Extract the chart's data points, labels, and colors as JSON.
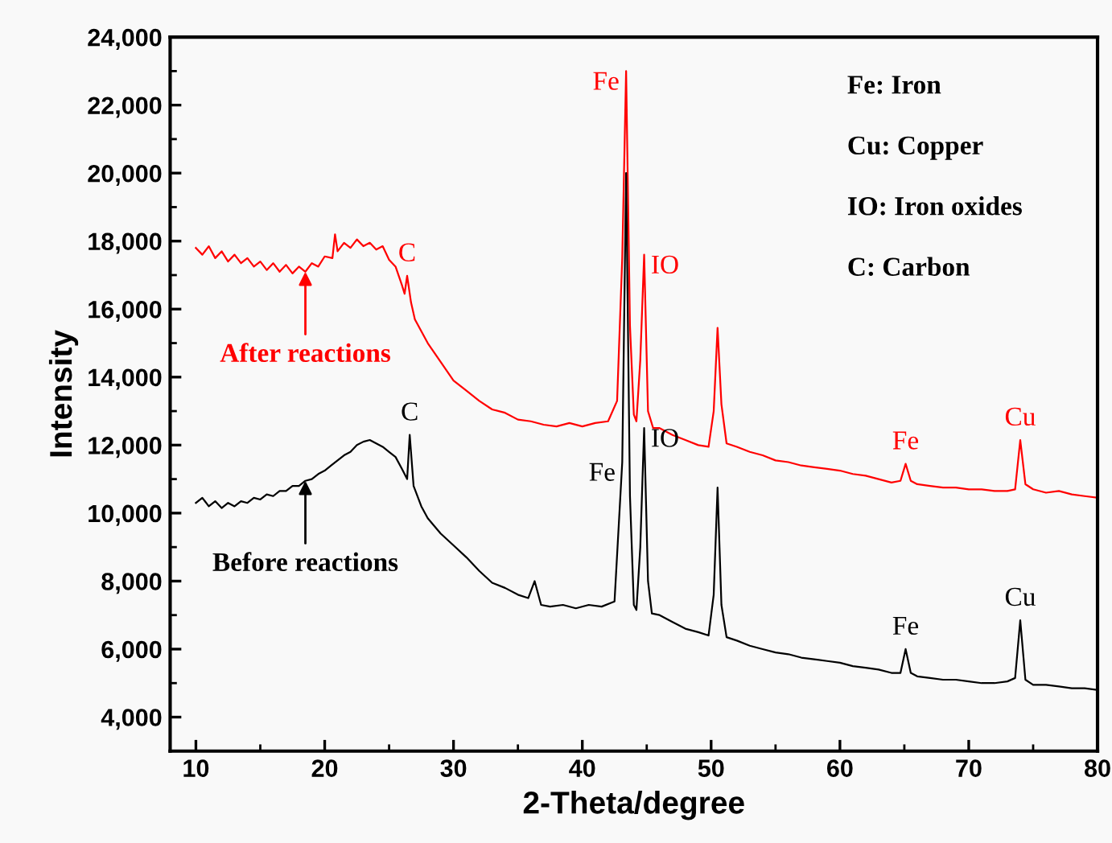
{
  "chart_data": {
    "type": "line",
    "xlabel": "2-Theta/degree",
    "ylabel": "Intensity",
    "xlim": [
      8,
      80
    ],
    "ylim": [
      3000,
      24000
    ],
    "xticks": [
      10,
      20,
      30,
      40,
      50,
      60,
      70,
      80
    ],
    "yticks": [
      {
        "value": 4000,
        "label": "4,000"
      },
      {
        "value": 6000,
        "label": "6,000"
      },
      {
        "value": 8000,
        "label": "8,000"
      },
      {
        "value": 10000,
        "label": "10,000"
      },
      {
        "value": 12000,
        "label": "12,000"
      },
      {
        "value": 14000,
        "label": "14,000"
      },
      {
        "value": 16000,
        "label": "16,000"
      },
      {
        "value": 18000,
        "label": "18,000"
      },
      {
        "value": 20000,
        "label": "20,000"
      },
      {
        "value": 22000,
        "label": "22,000"
      },
      {
        "value": 24000,
        "label": "24,000"
      }
    ],
    "grid": false,
    "marker": "none",
    "line_style": "solid",
    "series": [
      {
        "color": "#ff0000",
        "x": [
          10,
          10.5,
          11,
          11.5,
          12,
          12.5,
          13,
          13.5,
          14,
          14.5,
          15,
          15.5,
          16,
          16.5,
          17,
          17.5,
          18,
          18.5,
          19,
          19.5,
          20,
          20.6,
          20.8,
          21,
          21.5,
          22,
          22.5,
          23,
          23.5,
          24,
          24.5,
          25,
          25.5,
          26,
          26.2,
          26.4,
          26.7,
          27,
          28,
          29,
          30,
          31,
          32,
          33,
          34,
          35,
          36,
          37,
          38,
          39,
          40,
          41,
          42,
          42.7,
          43.1,
          43.4,
          43.7,
          44.0,
          44.2,
          44.5,
          44.8,
          45.1,
          45.5,
          46,
          47,
          48,
          49,
          49.8,
          50.2,
          50.5,
          50.8,
          51.2,
          52,
          53,
          54,
          55,
          56,
          57,
          58,
          59,
          60,
          61,
          62,
          63,
          64,
          64.7,
          65.1,
          65.5,
          66,
          67,
          68,
          69,
          70,
          71,
          72,
          73,
          73.6,
          74.0,
          74.4,
          75,
          76,
          77,
          78,
          79,
          80
        ],
        "values": [
          17800,
          17600,
          17850,
          17500,
          17700,
          17400,
          17600,
          17350,
          17500,
          17250,
          17400,
          17150,
          17350,
          17100,
          17300,
          17050,
          17250,
          17100,
          17350,
          17250,
          17550,
          17500,
          18200,
          17700,
          17950,
          17800,
          18050,
          17850,
          17950,
          17750,
          17850,
          17450,
          17250,
          16700,
          16450,
          16980,
          16200,
          15700,
          15000,
          14450,
          13900,
          13600,
          13300,
          13050,
          12950,
          12750,
          12700,
          12600,
          12550,
          12650,
          12550,
          12650,
          12700,
          13300,
          17500,
          23000,
          15500,
          12900,
          12700,
          14500,
          17600,
          13000,
          12500,
          12500,
          12300,
          12150,
          12000,
          11950,
          13000,
          15450,
          13200,
          12050,
          11950,
          11800,
          11700,
          11550,
          11500,
          11400,
          11350,
          11300,
          11250,
          11150,
          11100,
          11000,
          10900,
          10950,
          11450,
          10950,
          10850,
          10800,
          10750,
          10750,
          10700,
          10700,
          10650,
          10650,
          10700,
          12150,
          10850,
          10700,
          10600,
          10650,
          10550,
          10500,
          10450
        ]
      },
      {
        "color": "#000000",
        "x": [
          10,
          10.5,
          11,
          11.5,
          12,
          12.5,
          13,
          13.5,
          14,
          14.5,
          15,
          15.5,
          16,
          16.5,
          17,
          17.5,
          18,
          18.5,
          19,
          19.5,
          20,
          20.5,
          21,
          21.5,
          22,
          22.5,
          23,
          23.5,
          24,
          24.5,
          25,
          25.5,
          26,
          26.4,
          26.6,
          26.9,
          27.5,
          28,
          29,
          30,
          31,
          32,
          33,
          34,
          35,
          35.8,
          36.3,
          36.8,
          37.5,
          38.5,
          39.5,
          40.5,
          41.5,
          42.5,
          43.1,
          43.4,
          43.7,
          44.0,
          44.2,
          44.5,
          44.8,
          45.1,
          45.4,
          46,
          47,
          48,
          49,
          49.8,
          50.2,
          50.5,
          50.8,
          51.2,
          52,
          53,
          54,
          55,
          56,
          57,
          58,
          59,
          60,
          61,
          62,
          63,
          64,
          64.7,
          65.1,
          65.5,
          66,
          67,
          68,
          69,
          70,
          71,
          72,
          73,
          73.6,
          74.0,
          74.4,
          75,
          76,
          77,
          78,
          79,
          80
        ],
        "values": [
          10300,
          10450,
          10200,
          10350,
          10150,
          10300,
          10200,
          10350,
          10300,
          10450,
          10400,
          10550,
          10500,
          10650,
          10650,
          10800,
          10800,
          10950,
          11000,
          11150,
          11250,
          11400,
          11550,
          11700,
          11800,
          12000,
          12100,
          12150,
          12050,
          11950,
          11800,
          11650,
          11300,
          11000,
          12300,
          10800,
          10200,
          9850,
          9400,
          9050,
          8700,
          8300,
          7950,
          7800,
          7600,
          7500,
          8000,
          7300,
          7250,
          7300,
          7200,
          7300,
          7250,
          7400,
          11500,
          20000,
          10500,
          7300,
          7150,
          9000,
          12500,
          8000,
          7050,
          7000,
          6800,
          6600,
          6500,
          6400,
          7600,
          10750,
          7300,
          6350,
          6250,
          6100,
          6000,
          5900,
          5850,
          5750,
          5700,
          5650,
          5600,
          5500,
          5450,
          5400,
          5300,
          5300,
          6000,
          5300,
          5200,
          5150,
          5100,
          5100,
          5050,
          5000,
          5000,
          5050,
          5150,
          6850,
          5100,
          4950,
          4950,
          4900,
          4850,
          4850,
          4800
        ]
      }
    ],
    "annotations": [
      {
        "text": "After reactions",
        "x": 18.5,
        "y": 17100
      },
      {
        "text": "Before reactions",
        "x": 18.5,
        "y": 10950
      },
      {
        "text": "Fe",
        "x": 43.4,
        "y": 23000
      },
      {
        "text": "C",
        "x": 26.4,
        "y": 16980
      },
      {
        "text": "IO",
        "x": 44.8,
        "y": 17600
      },
      {
        "text": "Fe",
        "x": 65.1,
        "y": 11450
      },
      {
        "text": "Cu",
        "x": 74.0,
        "y": 12150
      },
      {
        "text": "C",
        "x": 26.6,
        "y": 12300
      },
      {
        "text": "Fe",
        "x": 43.1,
        "y": 11500
      },
      {
        "text": "IO",
        "x": 44.8,
        "y": 12500
      },
      {
        "text": "Fe",
        "x": 65.1,
        "y": 6000
      },
      {
        "text": "Cu",
        "x": 74.0,
        "y": 6850
      },
      "Fe: Iron",
      "Cu: Copper",
      "IO: Iron oxides",
      "C: Carbon"
    ]
  }
}
